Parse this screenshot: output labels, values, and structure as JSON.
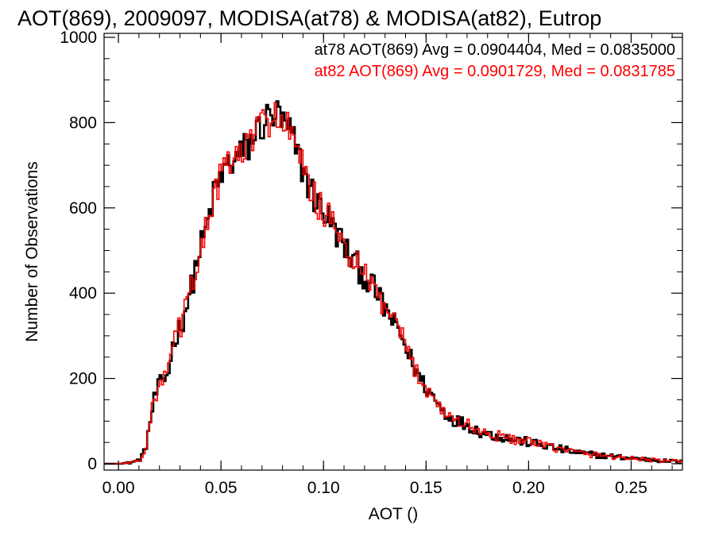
{
  "chart_data": {
    "type": "line",
    "title": "AOT(869), 2009097, MODISA(at78) & MODISA(at82), Eutrop",
    "xlabel": "AOT ()",
    "ylabel": "Number of Observations",
    "xlim": [
      -0.007,
      0.275
    ],
    "ylim": [
      0,
      1000
    ],
    "xticks": [
      0.0,
      0.05,
      0.1,
      0.15,
      0.2,
      0.25
    ],
    "xtick_labels": [
      "0.00",
      "0.05",
      "0.10",
      "0.15",
      "0.20",
      "0.25"
    ],
    "yticks": [
      0,
      200,
      400,
      600,
      800,
      1000
    ],
    "ytick_labels": [
      "0",
      "200",
      "400",
      "600",
      "800",
      "1000"
    ],
    "grid": false,
    "legend_position": "top-right",
    "bin_width": 0.001,
    "x": [
      0.0,
      0.005,
      0.01,
      0.013,
      0.015,
      0.017,
      0.019,
      0.021,
      0.023,
      0.025,
      0.027,
      0.029,
      0.031,
      0.033,
      0.035,
      0.037,
      0.039,
      0.041,
      0.043,
      0.045,
      0.047,
      0.049,
      0.051,
      0.053,
      0.055,
      0.057,
      0.059,
      0.061,
      0.063,
      0.065,
      0.067,
      0.069,
      0.071,
      0.073,
      0.075,
      0.077,
      0.079,
      0.081,
      0.083,
      0.085,
      0.087,
      0.09,
      0.093,
      0.096,
      0.099,
      0.102,
      0.105,
      0.108,
      0.111,
      0.114,
      0.117,
      0.12,
      0.123,
      0.126,
      0.129,
      0.132,
      0.135,
      0.138,
      0.141,
      0.144,
      0.147,
      0.15,
      0.153,
      0.156,
      0.159,
      0.162,
      0.165,
      0.168,
      0.171,
      0.174,
      0.177,
      0.18,
      0.185,
      0.19,
      0.195,
      0.2,
      0.205,
      0.21,
      0.215,
      0.22,
      0.225,
      0.23,
      0.235,
      0.24,
      0.245,
      0.25,
      0.255,
      0.26,
      0.265,
      0.27,
      0.274
    ],
    "series": [
      {
        "name": "at78",
        "color": "#000000",
        "annotation": "at78 AOT(869) Avg = 0.0904404, Med = 0.0835000",
        "values": [
          0,
          2,
          8,
          30,
          85,
          140,
          175,
          190,
          200,
          230,
          290,
          310,
          330,
          370,
          400,
          445,
          490,
          520,
          550,
          600,
          635,
          660,
          680,
          700,
          705,
          715,
          720,
          735,
          740,
          760,
          775,
          790,
          800,
          810,
          815,
          820,
          805,
          790,
          780,
          760,
          730,
          690,
          650,
          620,
          600,
          580,
          550,
          530,
          500,
          480,
          460,
          440,
          420,
          400,
          370,
          350,
          320,
          300,
          260,
          230,
          200,
          180,
          160,
          140,
          120,
          110,
          100,
          95,
          90,
          80,
          75,
          70,
          65,
          60,
          55,
          50,
          45,
          40,
          35,
          30,
          25,
          22,
          20,
          17,
          15,
          13,
          11,
          9,
          7,
          6,
          5
        ]
      },
      {
        "name": "at82",
        "color": "#ff0000",
        "annotation": "at82 AOT(869) Avg = 0.0901729, Med = 0.0831785",
        "values": [
          0,
          2,
          8,
          30,
          85,
          140,
          175,
          190,
          200,
          230,
          290,
          310,
          330,
          370,
          400,
          445,
          490,
          520,
          550,
          600,
          635,
          660,
          680,
          700,
          705,
          715,
          720,
          735,
          740,
          760,
          775,
          790,
          800,
          810,
          815,
          820,
          805,
          790,
          780,
          760,
          730,
          690,
          650,
          620,
          600,
          580,
          550,
          530,
          500,
          480,
          460,
          440,
          420,
          400,
          370,
          350,
          320,
          300,
          260,
          230,
          200,
          180,
          160,
          140,
          120,
          110,
          100,
          95,
          90,
          80,
          75,
          70,
          65,
          60,
          55,
          50,
          45,
          40,
          35,
          30,
          25,
          22,
          20,
          17,
          15,
          13,
          11,
          9,
          7,
          6,
          5
        ]
      }
    ]
  }
}
